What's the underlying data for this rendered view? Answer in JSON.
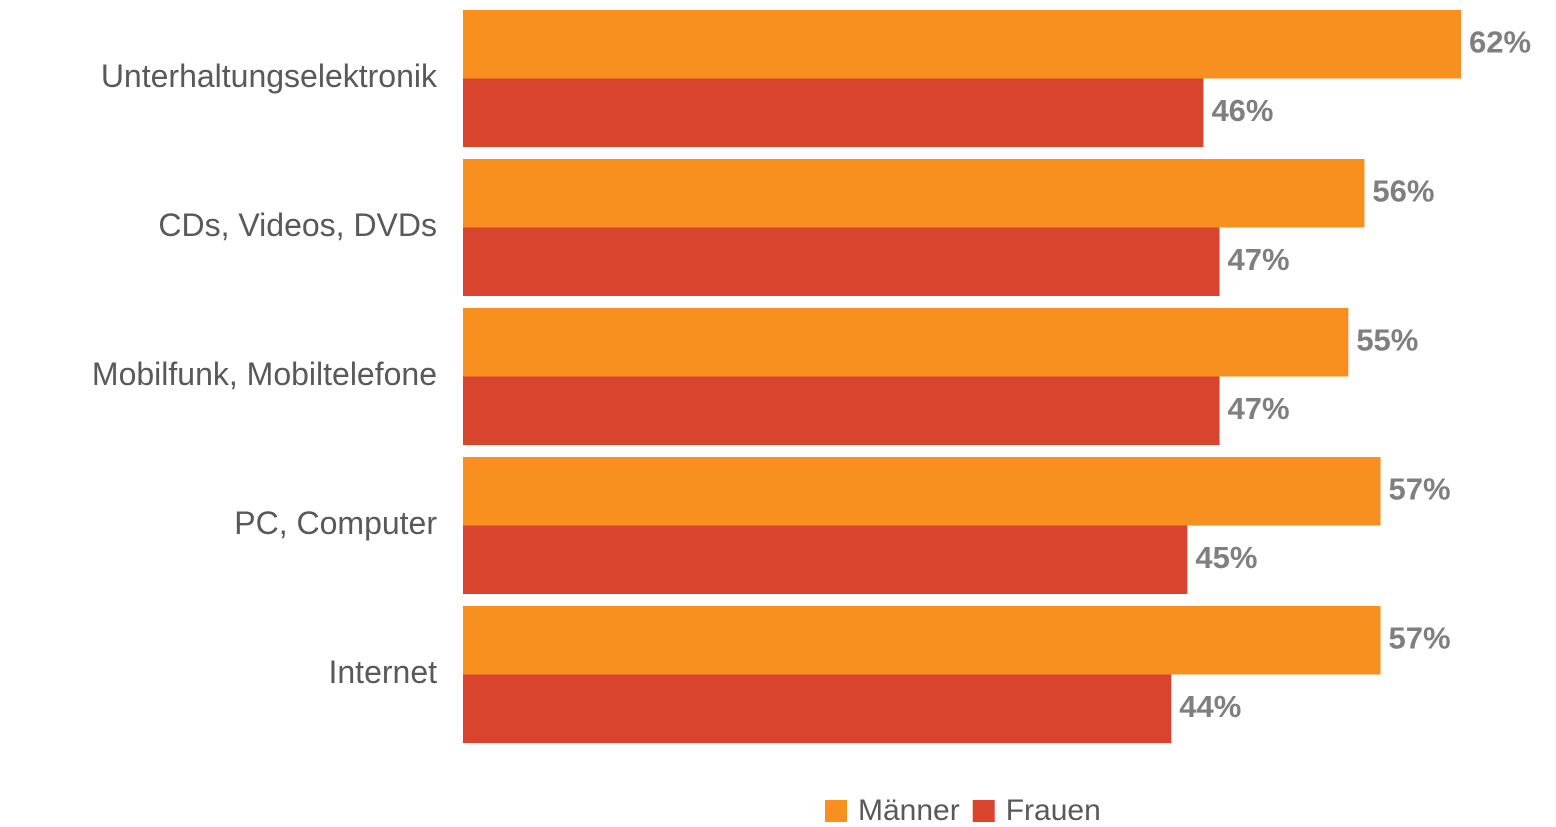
{
  "chart_data": {
    "type": "hbar",
    "categories": [
      "Unterhaltungselektronik",
      "CDs, Videos, DVDs",
      "Mobilfunk, Mobiltelefone",
      "PC, Computer",
      "Internet"
    ],
    "series": [
      {
        "name": "Männer",
        "color": "#f7901e",
        "values": [
          62,
          56,
          55,
          57,
          57
        ],
        "value_labels": [
          "62%",
          "56%",
          "55%",
          "57%",
          "57%"
        ]
      },
      {
        "name": "Frauen",
        "color": "#d9442f",
        "values": [
          46,
          47,
          47,
          45,
          44
        ],
        "value_labels": [
          "46%",
          "47%",
          "47%",
          "45%",
          "44%"
        ]
      }
    ],
    "legend": "bottom"
  }
}
